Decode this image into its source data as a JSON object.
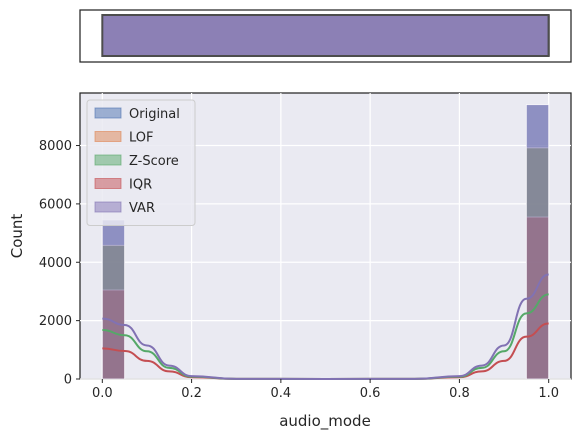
{
  "chart_data": [
    {
      "type": "boxplot",
      "orientation": "horizontal",
      "xlim": [
        -0.05,
        1.05
      ],
      "box": {
        "q1": 0.0,
        "q3": 1.0,
        "whisker_low": 0.0,
        "whisker_high": 1.0,
        "median": 1.0
      },
      "color": "#8c80b5",
      "edge_color": "#4d4d4d",
      "grid": false
    },
    {
      "type": "histogram",
      "xlabel": "audio_mode",
      "ylabel": "Count",
      "xlim": [
        -0.05,
        1.05
      ],
      "ylim": [
        0,
        9800
      ],
      "xticks": [
        "0.0",
        "0.2",
        "0.4",
        "0.6",
        "0.8",
        "1.0"
      ],
      "yticks": [
        "0",
        "2000",
        "4000",
        "6000",
        "8000"
      ],
      "xtick_values": [
        0.0,
        0.2,
        0.4,
        0.6,
        0.8,
        1.0
      ],
      "ytick_values": [
        0,
        2000,
        4000,
        6000,
        8000
      ],
      "grid": true,
      "legend_position": "top-left",
      "bins": [
        {
          "x0": 0.0,
          "x1": 0.05
        },
        {
          "x0": 0.95,
          "x1": 1.0
        }
      ],
      "series": [
        {
          "name": "Original",
          "color": "#4c72b0",
          "values": [
            5450,
            9400
          ]
        },
        {
          "name": "LOF",
          "color": "#dd8452",
          "values": [
            4580,
            7920
          ]
        },
        {
          "name": "Z-Score",
          "color": "#55a868",
          "values": [
            4580,
            7920
          ]
        },
        {
          "name": "IQR",
          "color": "#c44e52",
          "values": [
            3050,
            5550
          ]
        },
        {
          "name": "VAR",
          "color": "#8172b3",
          "values": [
            5450,
            9400
          ]
        }
      ],
      "kde": [
        {
          "name": "IQR",
          "color": "#c44e52",
          "x": [
            0.0,
            0.05,
            0.1,
            0.15,
            0.2,
            0.3,
            0.5,
            0.7,
            0.8,
            0.85,
            0.9,
            0.95,
            1.0
          ],
          "y": [
            1050,
            960,
            620,
            260,
            60,
            5,
            0,
            5,
            60,
            260,
            620,
            1450,
            1900
          ]
        },
        {
          "name": "Z-Score",
          "color": "#55a868",
          "x": [
            0.0,
            0.05,
            0.1,
            0.15,
            0.2,
            0.3,
            0.5,
            0.7,
            0.8,
            0.85,
            0.9,
            0.95,
            1.0
          ],
          "y": [
            1680,
            1500,
            950,
            380,
            80,
            5,
            0,
            5,
            80,
            380,
            950,
            2250,
            2900
          ]
        },
        {
          "name": "VAR",
          "color": "#8172b3",
          "x": [
            0.0,
            0.05,
            0.1,
            0.15,
            0.2,
            0.3,
            0.5,
            0.7,
            0.8,
            0.85,
            0.9,
            0.95,
            1.0
          ],
          "y": [
            2070,
            1850,
            1150,
            460,
            100,
            5,
            0,
            5,
            100,
            460,
            1150,
            2750,
            3580
          ]
        }
      ]
    }
  ]
}
